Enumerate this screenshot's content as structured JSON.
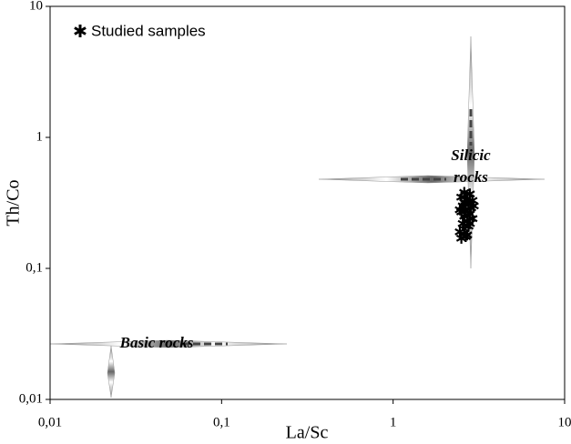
{
  "chart_data": {
    "type": "scatter",
    "xlabel": "La/Sc",
    "ylabel": "Th/Co",
    "xscale": "log",
    "yscale": "log",
    "xlim": [
      0.01,
      10
    ],
    "ylim": [
      0.01,
      10
    ],
    "xticks": [
      {
        "value": 0.01,
        "label": "0,01"
      },
      {
        "value": 0.1,
        "label": "0,1"
      },
      1,
      10
    ],
    "yticks": [
      {
        "value": 0.01,
        "label": "0,01"
      },
      {
        "value": 0.1,
        "label": "0,1"
      },
      1,
      10
    ],
    "legend": "upper left",
    "annotations": [
      "Silicic",
      "rocks",
      "Basic rocks"
    ],
    "series": [
      {
        "name": "Studied samples",
        "color": "#000000",
        "marker": "*",
        "x": [
          2.6,
          2.8,
          2.5,
          2.7,
          2.9,
          2.6,
          2.75,
          2.55,
          2.85,
          2.65,
          2.5,
          2.8,
          2.6,
          2.9,
          2.7,
          2.55,
          2.75,
          2.6,
          2.45,
          2.7,
          2.5,
          2.65,
          2.8,
          2.45,
          2.95
        ],
        "values": [
          0.38,
          0.37,
          0.35,
          0.34,
          0.33,
          0.32,
          0.31,
          0.3,
          0.29,
          0.28,
          0.27,
          0.26,
          0.25,
          0.24,
          0.23,
          0.22,
          0.21,
          0.2,
          0.19,
          0.18,
          0.17,
          0.175,
          0.22,
          0.28,
          0.3
        ]
      }
    ]
  }
}
